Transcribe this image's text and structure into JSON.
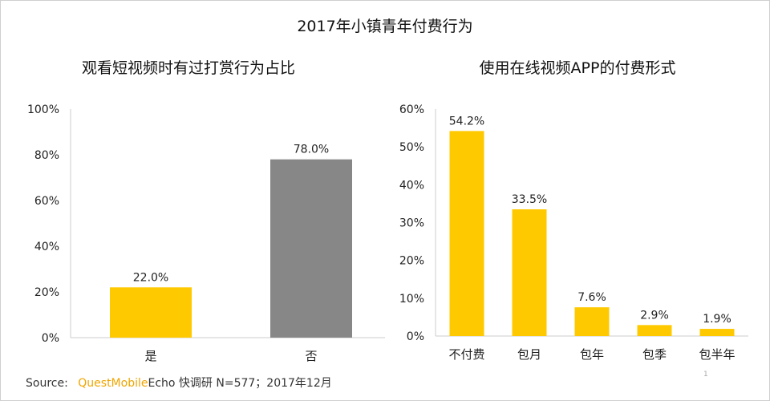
{
  "main_title": "2017年小镇青年付费行为",
  "colors": {
    "yellow": "#ffc900",
    "gray": "#878787",
    "axis": "#cccccc"
  },
  "chart_data": [
    {
      "type": "bar",
      "title": "观看短视频时有过打赏行为占比",
      "categories": [
        "是",
        "否"
      ],
      "values": [
        22.0,
        78.0
      ],
      "value_labels": [
        "22.0%",
        "78.0%"
      ],
      "bar_colors": [
        "#ffc900",
        "#878787"
      ],
      "ylim": [
        0,
        100
      ],
      "yticks": [
        0,
        20,
        40,
        60,
        80,
        100
      ],
      "ytick_labels": [
        "0%",
        "20%",
        "40%",
        "60%",
        "80%",
        "100%"
      ],
      "xlabel": "",
      "ylabel": ""
    },
    {
      "type": "bar",
      "title": "使用在线视频APP的付费形式",
      "categories": [
        "不付费",
        "包月",
        "包年",
        "包季",
        "包半年"
      ],
      "values": [
        54.2,
        33.5,
        7.6,
        2.9,
        1.9
      ],
      "value_labels": [
        "54.2%",
        "33.5%",
        "7.6%",
        "2.9%",
        "1.9%"
      ],
      "bar_colors": [
        "#ffc900",
        "#ffc900",
        "#ffc900",
        "#ffc900",
        "#ffc900"
      ],
      "ylim": [
        0,
        60
      ],
      "yticks": [
        0,
        10,
        20,
        30,
        40,
        50,
        60
      ],
      "ytick_labels": [
        "0%",
        "10%",
        "20%",
        "30%",
        "40%",
        "50%",
        "60%"
      ],
      "xlabel": "",
      "ylabel": ""
    }
  ],
  "footer": {
    "source_label": "Source:",
    "brand": "QuestMobile",
    "text": "Echo 快调研 N=577；2017年12月"
  },
  "page_number": "1"
}
